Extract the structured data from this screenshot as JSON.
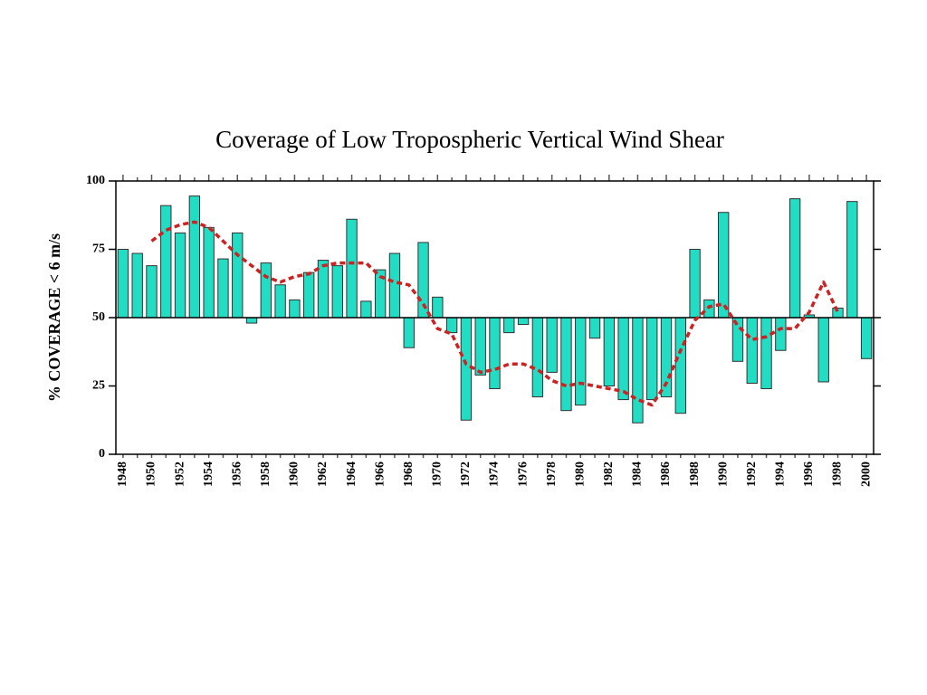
{
  "chart_data": {
    "type": "bar",
    "title": "Coverage of Low Tropospheric Vertical Wind Shear",
    "y_label": "% COVERAGE < 6 m/s",
    "categories": [
      "1948",
      null,
      "1950",
      null,
      "1952",
      null,
      "1954",
      null,
      "1956",
      null,
      "1958",
      null,
      "1960",
      null,
      "1962",
      null,
      "1964",
      null,
      "1966",
      null,
      "1968",
      null,
      "1970",
      null,
      "1972",
      null,
      "1974",
      null,
      "1976",
      null,
      "1978",
      null,
      "1980",
      null,
      "1982",
      null,
      "1984",
      null,
      "1986",
      null,
      "1988",
      null,
      "1990",
      null,
      "1992",
      null,
      "1994",
      null,
      "1996",
      null,
      "1998",
      null,
      "2000"
    ],
    "series": [
      {
        "type": "bar",
        "color": "#22dcc4",
        "baseline": 50,
        "values": [
          75,
          73.5,
          69,
          91,
          81,
          94.5,
          83,
          71.5,
          81,
          48,
          70,
          62,
          56.5,
          66.5,
          71,
          69,
          86,
          56,
          67.5,
          73.5,
          39,
          77.5,
          57.5,
          44.5,
          12.5,
          29,
          24,
          44.5,
          47.5,
          21,
          30,
          16,
          18,
          42.5,
          25,
          20,
          11.5,
          20,
          21,
          15,
          75,
          56.5,
          88.5,
          34,
          26,
          24,
          38,
          93.5,
          51,
          26.5,
          53.5,
          92.5,
          35
        ]
      },
      {
        "type": "line",
        "color": "#cc2222",
        "dashed": true,
        "values": [
          null,
          null,
          78,
          82,
          84,
          85,
          83,
          78,
          73,
          69,
          65,
          63,
          65,
          66,
          69,
          70,
          70,
          70,
          65,
          63,
          62,
          55,
          46,
          44,
          33,
          30,
          31,
          33,
          33,
          31,
          27,
          25,
          26,
          25,
          24,
          23,
          20,
          18,
          26,
          38,
          49,
          54,
          55,
          47,
          42,
          43,
          46,
          46,
          52,
          63,
          52,
          null,
          null
        ]
      }
    ],
    "ylim": [
      0,
      100
    ],
    "yticks": [
      0,
      25,
      50,
      75,
      100
    ]
  }
}
